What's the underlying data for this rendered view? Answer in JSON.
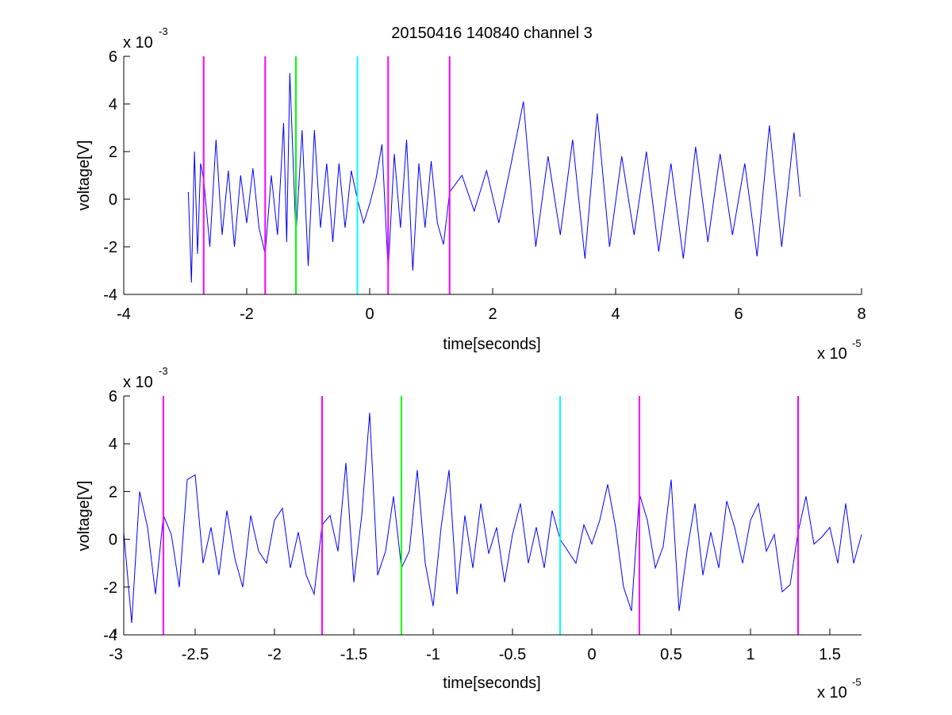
{
  "figure": {
    "title": "20150416 140840 channel 3"
  },
  "chart_data": [
    {
      "type": "line",
      "title": "20150416 140840 channel 3",
      "xlabel": "time[seconds]",
      "ylabel": "voltage[V]",
      "x_exponent_label": "x 10",
      "x_exponent": "-5",
      "y_exponent_label": "x 10",
      "y_exponent": "-3",
      "xlim": [
        -4,
        8
      ],
      "ylim": [
        -4,
        6
      ],
      "xticks": [
        -4,
        -2,
        0,
        2,
        4,
        6,
        8
      ],
      "xtick_labels": [
        "-4",
        "-2",
        "0",
        "2",
        "4",
        "6",
        "8"
      ],
      "yticks": [
        -4,
        -2,
        0,
        2,
        4,
        6
      ],
      "ytick_labels": [
        "-4",
        "-2",
        "0",
        "2",
        "4",
        "6"
      ],
      "grid": false,
      "series": [
        {
          "color": "#0000ff",
          "x": [
            -2.95,
            -2.9,
            -2.85,
            -2.8,
            -2.75,
            -2.7,
            -2.6,
            -2.5,
            -2.4,
            -2.3,
            -2.2,
            -2.1,
            -2.0,
            -1.9,
            -1.8,
            -1.7,
            -1.6,
            -1.5,
            -1.4,
            -1.35,
            -1.3,
            -1.2,
            -1.1,
            -1.0,
            -0.9,
            -0.8,
            -0.7,
            -0.6,
            -0.5,
            -0.4,
            -0.3,
            -0.2,
            -0.1,
            0.0,
            0.1,
            0.2,
            0.3,
            0.4,
            0.5,
            0.6,
            0.7,
            0.8,
            0.9,
            1.0,
            1.1,
            1.2,
            1.3,
            1.5,
            1.7,
            1.9,
            2.1,
            2.3,
            2.5,
            2.7,
            2.9,
            3.1,
            3.3,
            3.5,
            3.7,
            3.9,
            4.1,
            4.3,
            4.5,
            4.7,
            4.9,
            5.1,
            5.3,
            5.5,
            5.7,
            5.9,
            6.1,
            6.3,
            6.5,
            6.7,
            6.9,
            7.0
          ],
          "y": [
            0.3,
            -3.5,
            2.0,
            -2.3,
            1.5,
            0.8,
            -2.0,
            2.5,
            -1.5,
            1.2,
            -2.0,
            1.0,
            -1.0,
            1.3,
            -1.2,
            -2.3,
            1.0,
            -1.5,
            3.2,
            -1.8,
            5.3,
            -1.5,
            2.9,
            -2.8,
            2.9,
            -1.2,
            1.5,
            -1.8,
            1.5,
            -1.2,
            1.2,
            0.0,
            -1.0,
            -0.2,
            0.8,
            2.3,
            -3.0,
            1.9,
            -1.2,
            2.5,
            -3.0,
            1.5,
            -1.2,
            1.6,
            -1.0,
            -1.9,
            0.3,
            1.0,
            -0.5,
            1.2,
            -1.0,
            1.5,
            4.1,
            -2.0,
            1.8,
            -1.5,
            2.5,
            -2.5,
            3.6,
            -2.0,
            1.8,
            -1.5,
            2.0,
            -2.2,
            1.5,
            -2.5,
            2.2,
            -1.8,
            1.9,
            -1.5,
            1.5,
            -2.4,
            3.1,
            -2.0,
            2.8,
            0.1
          ]
        }
      ],
      "markers": [
        {
          "x": -2.7,
          "color": "#ff00ff"
        },
        {
          "x": -1.7,
          "color": "#ff00ff"
        },
        {
          "x": -1.2,
          "color": "#00ff00"
        },
        {
          "x": -0.2,
          "color": "#00ffff"
        },
        {
          "x": 0.3,
          "color": "#ff00ff"
        },
        {
          "x": 1.3,
          "color": "#ff00ff"
        }
      ]
    },
    {
      "type": "line",
      "title": "",
      "xlabel": "time[seconds]",
      "ylabel": "voltage[V]",
      "x_exponent_label": "x 10",
      "x_exponent": "-5",
      "y_exponent_label": "x 10",
      "y_exponent": "-3",
      "xlim": [
        -2.95,
        1.7
      ],
      "ylim": [
        -4,
        6
      ],
      "xticks": [
        -3,
        -2.5,
        -2,
        -1.5,
        -1,
        -0.5,
        0,
        0.5,
        1,
        1.5
      ],
      "xtick_labels": [
        "-3",
        "-2.5",
        "-2",
        "-1.5",
        "-1",
        "-0.5",
        "0",
        "0.5",
        "1",
        "1.5"
      ],
      "yticks": [
        -4,
        -2,
        0,
        2,
        4,
        6
      ],
      "ytick_labels": [
        "-4",
        "-2",
        "0",
        "2",
        "4",
        "6"
      ],
      "grid": false,
      "series": [
        {
          "color": "#0000ff",
          "x": [
            -2.95,
            -2.9,
            -2.85,
            -2.8,
            -2.75,
            -2.7,
            -2.65,
            -2.6,
            -2.55,
            -2.5,
            -2.45,
            -2.4,
            -2.35,
            -2.3,
            -2.25,
            -2.2,
            -2.15,
            -2.1,
            -2.05,
            -2.0,
            -1.95,
            -1.9,
            -1.85,
            -1.8,
            -1.75,
            -1.7,
            -1.65,
            -1.6,
            -1.55,
            -1.5,
            -1.45,
            -1.4,
            -1.35,
            -1.3,
            -1.25,
            -1.2,
            -1.15,
            -1.1,
            -1.05,
            -1.0,
            -0.95,
            -0.9,
            -0.85,
            -0.8,
            -0.75,
            -0.7,
            -0.65,
            -0.6,
            -0.55,
            -0.5,
            -0.45,
            -0.4,
            -0.35,
            -0.3,
            -0.25,
            -0.2,
            -0.15,
            -0.1,
            -0.05,
            0.0,
            0.05,
            0.1,
            0.15,
            0.2,
            0.25,
            0.3,
            0.35,
            0.4,
            0.45,
            0.5,
            0.55,
            0.6,
            0.65,
            0.7,
            0.75,
            0.8,
            0.85,
            0.9,
            0.95,
            1.0,
            1.05,
            1.1,
            1.15,
            1.2,
            1.25,
            1.3,
            1.35,
            1.4,
            1.45,
            1.5,
            1.55,
            1.6,
            1.65,
            1.7
          ],
          "y": [
            0.3,
            -3.5,
            2.0,
            0.5,
            -2.3,
            1.0,
            0.2,
            -2.0,
            2.5,
            2.7,
            -1.0,
            0.5,
            -1.5,
            1.2,
            -0.8,
            -2.0,
            1.0,
            -0.5,
            -1.0,
            0.8,
            1.3,
            -1.2,
            0.3,
            -1.5,
            -2.3,
            0.6,
            1.0,
            -0.5,
            3.2,
            -1.8,
            1.0,
            5.3,
            -1.5,
            -0.5,
            1.8,
            -1.2,
            -0.5,
            2.9,
            -1.0,
            -2.8,
            0.5,
            2.9,
            -2.3,
            1.0,
            -1.2,
            1.5,
            -0.6,
            0.5,
            -1.8,
            0.2,
            1.5,
            -1.0,
            0.5,
            -1.2,
            1.2,
            0.0,
            -0.5,
            -1.0,
            0.6,
            -0.2,
            0.8,
            2.3,
            0.5,
            -2.0,
            -3.0,
            1.9,
            0.8,
            -1.2,
            -0.3,
            2.5,
            -3.0,
            -0.5,
            1.5,
            -1.5,
            0.3,
            -1.2,
            1.6,
            0.5,
            -1.0,
            0.8,
            1.5,
            -0.5,
            0.2,
            -2.2,
            -1.9,
            0.3,
            1.8,
            -0.2,
            0.1,
            0.5,
            -1.0,
            1.5,
            -1.0,
            0.2
          ]
        }
      ],
      "markers": [
        {
          "x": -2.7,
          "color": "#ff00ff"
        },
        {
          "x": -1.7,
          "color": "#ff00ff"
        },
        {
          "x": -1.2,
          "color": "#00ff00"
        },
        {
          "x": -0.2,
          "color": "#00ffff"
        },
        {
          "x": 0.3,
          "color": "#ff00ff"
        },
        {
          "x": 1.3,
          "color": "#ff00ff"
        }
      ]
    }
  ]
}
